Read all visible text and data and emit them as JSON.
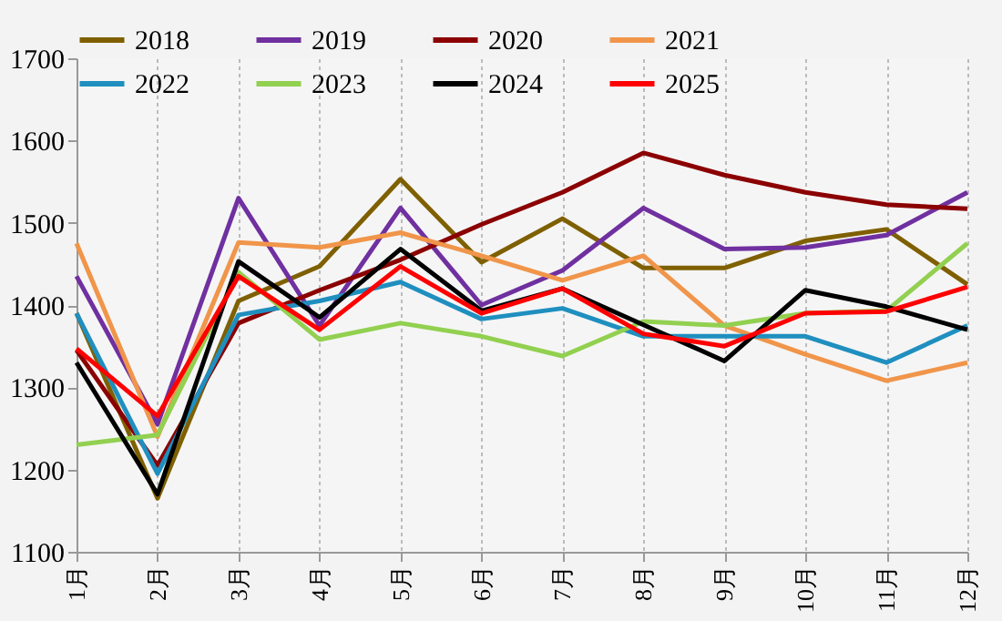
{
  "chart_data": {
    "type": "line",
    "categories": [
      "1月",
      "2月",
      "3月",
      "4月",
      "5月",
      "6月",
      "7月",
      "8月",
      "9月",
      "10月",
      "11月",
      "12月"
    ],
    "series": [
      {
        "name": "2018",
        "color": "#7f6000",
        "values": [
          1390,
          1165,
          1405,
          1447,
          1553,
          1452,
          1505,
          1445,
          1445,
          1478,
          1492,
          1425
        ]
      },
      {
        "name": "2019",
        "color": "#7030a0",
        "values": [
          1435,
          1255,
          1530,
          1375,
          1518,
          1400,
          1442,
          1518,
          1468,
          1470,
          1485,
          1537
        ]
      },
      {
        "name": "2020",
        "color": "#8b0000",
        "values": [
          1345,
          1205,
          1378,
          1418,
          1455,
          1498,
          1537,
          1585,
          1558,
          1537,
          1522,
          1517
        ]
      },
      {
        "name": "2021",
        "color": "#f0954a",
        "values": [
          1475,
          1240,
          1476,
          1470,
          1488,
          1460,
          1430,
          1460,
          1375,
          1340,
          1308,
          1330
        ]
      },
      {
        "name": "2022",
        "color": "#1f8fbf",
        "values": [
          1390,
          1195,
          1388,
          1405,
          1428,
          1383,
          1396,
          1362,
          1362,
          1362,
          1330,
          1375
        ]
      },
      {
        "name": "2023",
        "color": "#92d050",
        "values": [
          1230,
          1242,
          1440,
          1358,
          1378,
          1362,
          1338,
          1380,
          1375,
          1390,
          1393,
          1475
        ]
      },
      {
        "name": "2024",
        "color": "#000000",
        "values": [
          1330,
          1170,
          1453,
          1385,
          1468,
          1393,
          1420,
          1376,
          1332,
          1418,
          1398,
          1370
        ]
      },
      {
        "name": "2025",
        "color": "#ff0000",
        "values": [
          1347,
          1265,
          1435,
          1370,
          1447,
          1390,
          1420,
          1365,
          1350,
          1390,
          1392,
          1422
        ]
      }
    ],
    "ylim": [
      1100,
      1700
    ],
    "yticks": [
      1100,
      1200,
      1300,
      1400,
      1500,
      1600,
      1700
    ],
    "grid": "x",
    "legend": "top",
    "marker": "none",
    "line_style": "solid"
  }
}
